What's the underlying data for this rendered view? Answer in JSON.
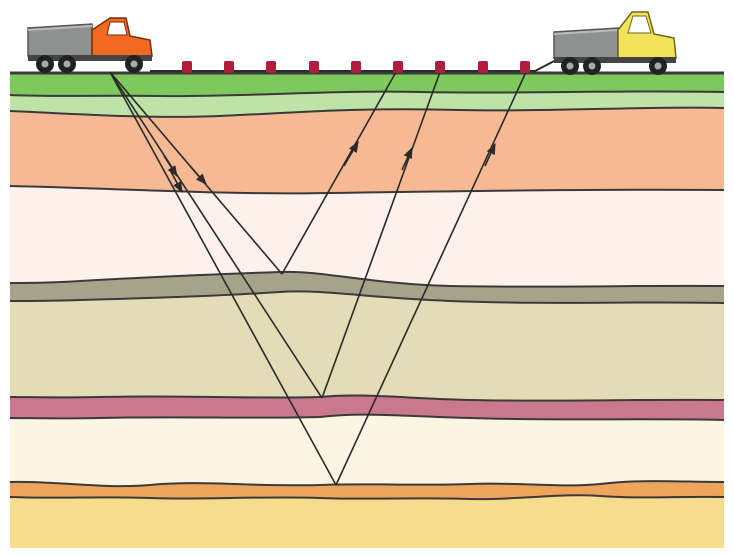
{
  "diagram": {
    "type": "seismic-reflection-survey",
    "colors": {
      "background": "#ffffff",
      "ground_surface": "#7dc95e",
      "topsoil_band": "#bfe3a7",
      "layer_peach": "#f7b894",
      "layer_pale_pink": "#fdf1ec",
      "reflector_olive": "#a6a38a",
      "layer_khaki": "#e3dcb6",
      "reflector_rose": "#c9788d",
      "layer_cream": "#fdf5e3",
      "reflector_orange": "#eea45a",
      "layer_yellow": "#f6dc8c",
      "ray": "#2a2a2a",
      "geophone": "#b01e3c",
      "cable": "#2b2b2b",
      "source_truck_cab": "#f26a21",
      "receiver_truck_cab": "#f2e35a",
      "truck_bed": "#8f9090"
    },
    "elements": {
      "source_truck": "orange-cab-dump-truck",
      "recording_truck": "yellow-cab-dump-truck",
      "geophone_count": 9,
      "reflectors": [
        "olive-reflector",
        "rose-reflector",
        "orange-reflector"
      ],
      "ray_paths": 3
    }
  }
}
